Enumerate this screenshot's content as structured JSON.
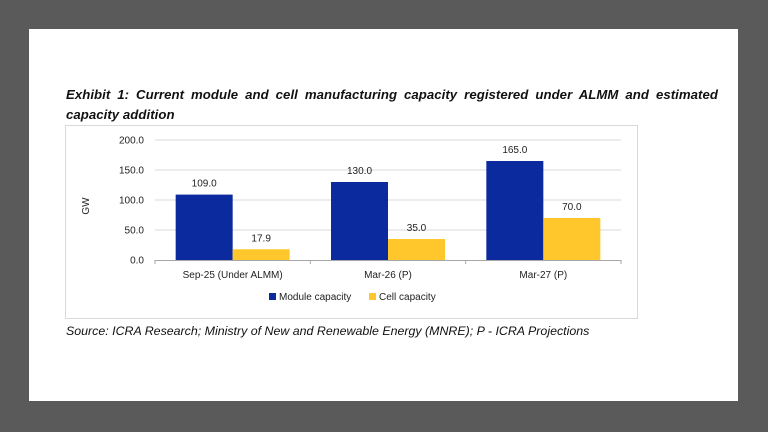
{
  "exhibit_title": "Exhibit 1: Current module and cell manufacturing capacity registered under ALMM and estimated capacity addition",
  "source": "Source: ICRA Research; Ministry of New and Renewable Energy (MNRE); P - ICRA Projections",
  "chart_data": {
    "type": "bar",
    "title": "Exhibit 1: Current module and cell manufacturing capacity registered under ALMM and estimated capacity addition",
    "xlabel": "",
    "ylabel": "GW",
    "ylim": [
      0,
      200
    ],
    "yticks": [
      0,
      50,
      100,
      150,
      200
    ],
    "ytick_labels": [
      "0.0",
      "50.0",
      "100.0",
      "150.0",
      "200.0"
    ],
    "grid": true,
    "legend_position": "bottom",
    "categories": [
      "Sep-25 (Under ALMM)",
      "Mar-26 (P)",
      "Mar-27 (P)"
    ],
    "series": [
      {
        "name": "Module capacity",
        "color": "#0a2a9e",
        "values": [
          109.0,
          130.0,
          165.0
        ],
        "labels": [
          "109.0",
          "130.0",
          "165.0"
        ]
      },
      {
        "name": "Cell capacity",
        "color": "#ffc72c",
        "values": [
          17.9,
          35.0,
          70.0
        ],
        "labels": [
          "17.9",
          "35.0",
          "70.0"
        ]
      }
    ]
  }
}
